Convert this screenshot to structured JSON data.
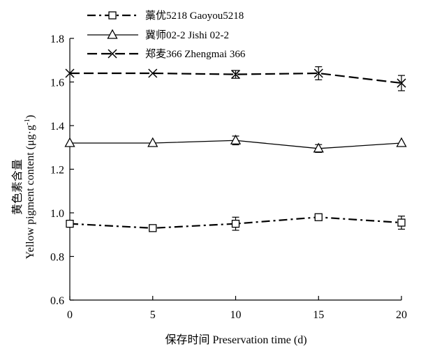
{
  "chart_data": {
    "type": "line",
    "xlabel": "保存时间 Preservation time (d)",
    "ylabel_cn": "黄色素含量",
    "ylabel_en_main": "Yellow pigment content (μg·g",
    "ylabel_en_sup": "-1",
    "ylabel_en_close": ")",
    "xlim": [
      0,
      20
    ],
    "ylim": [
      0.6,
      1.8
    ],
    "x_ticks": [
      0,
      5,
      10,
      15,
      20
    ],
    "y_ticks": [
      0.6,
      0.8,
      1.0,
      1.2,
      1.4,
      1.6,
      1.8
    ],
    "x_tick_labels": [
      "0",
      "5",
      "10",
      "15",
      "20"
    ],
    "y_tick_labels": [
      "0.6",
      "0.8",
      "1.0",
      "1.2",
      "1.4",
      "1.6",
      "1.8"
    ],
    "grid": false,
    "legend_position": "top-left",
    "series": [
      {
        "name": "藁优5218 Gaoyou5218",
        "marker": "square",
        "line_style": "dash-dot",
        "x": [
          0,
          5,
          10,
          15,
          20
        ],
        "y": [
          0.95,
          0.93,
          0.95,
          0.98,
          0.955
        ],
        "err": [
          0.0,
          0.015,
          0.03,
          0.008,
          0.03
        ]
      },
      {
        "name": "冀师02-2 Jishi 02-2",
        "marker": "triangle",
        "line_style": "solid",
        "x": [
          0,
          5,
          10,
          15,
          20
        ],
        "y": [
          1.32,
          1.32,
          1.332,
          1.295,
          1.32
        ],
        "err": [
          0.0,
          0.0,
          0.02,
          0.018,
          0.0
        ]
      },
      {
        "name": "郑麦366 Zhengmai 366",
        "marker": "x",
        "line_style": "dashed",
        "x": [
          0,
          5,
          10,
          15,
          20
        ],
        "y": [
          1.64,
          1.64,
          1.635,
          1.64,
          1.595
        ],
        "err": [
          0.0,
          0.0,
          0.018,
          0.03,
          0.035
        ]
      }
    ]
  }
}
